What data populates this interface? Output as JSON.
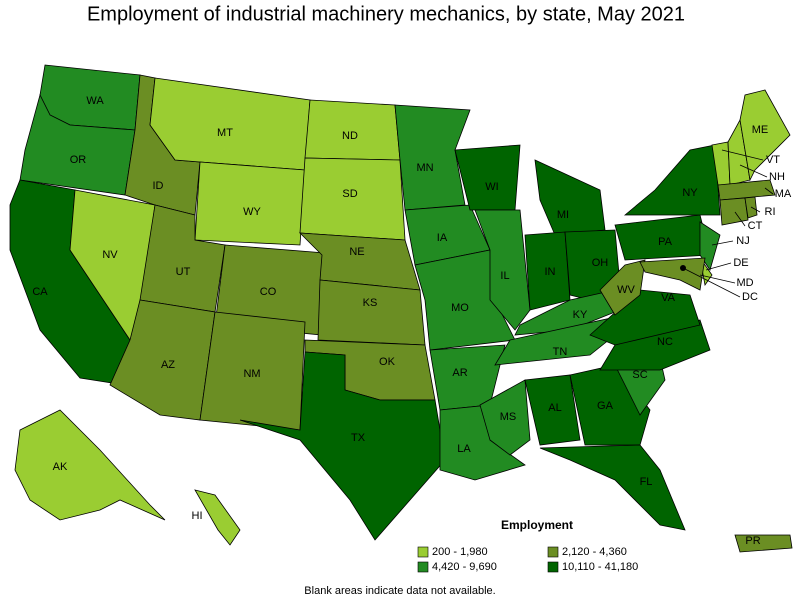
{
  "title": "Employment of industrial machinery mechanics, by state, May 2021",
  "legend": {
    "title": "Employment",
    "entries": [
      {
        "label": "200 - 1,980",
        "color": "#9acd32"
      },
      {
        "label": "2,120 - 4,360",
        "color": "#6b8e23"
      },
      {
        "label": "4,420 - 9,690",
        "color": "#228b22"
      },
      {
        "label": "10,110 - 41,180",
        "color": "#006400"
      }
    ]
  },
  "states": [
    {
      "label": "WA",
      "color": "#228b22"
    },
    {
      "label": "OR",
      "color": "#228b22"
    },
    {
      "label": "CA",
      "color": "#006400"
    },
    {
      "label": "NV",
      "color": "#9acd32"
    },
    {
      "label": "ID",
      "color": "#6b8e23"
    },
    {
      "label": "MT",
      "color": "#9acd32"
    },
    {
      "label": "WY",
      "color": "#9acd32"
    },
    {
      "label": "UT",
      "color": "#6b8e23"
    },
    {
      "label": "CO",
      "color": "#6b8e23"
    },
    {
      "label": "AZ",
      "color": "#6b8e23"
    },
    {
      "label": "NM",
      "color": "#6b8e23"
    },
    {
      "label": "ND",
      "color": "#9acd32"
    },
    {
      "label": "SD",
      "color": "#9acd32"
    },
    {
      "label": "NE",
      "color": "#6b8e23"
    },
    {
      "label": "KS",
      "color": "#6b8e23"
    },
    {
      "label": "OK",
      "color": "#6b8e23"
    },
    {
      "label": "TX",
      "color": "#006400"
    },
    {
      "label": "MN",
      "color": "#228b22"
    },
    {
      "label": "IA",
      "color": "#228b22"
    },
    {
      "label": "MO",
      "color": "#228b22"
    },
    {
      "label": "AR",
      "color": "#228b22"
    },
    {
      "label": "LA",
      "color": "#228b22"
    },
    {
      "label": "WI",
      "color": "#006400"
    },
    {
      "label": "IL",
      "color": "#228b22"
    },
    {
      "label": "MI",
      "color": "#006400"
    },
    {
      "label": "IN",
      "color": "#006400"
    },
    {
      "label": "OH",
      "color": "#006400"
    },
    {
      "label": "KY",
      "color": "#228b22"
    },
    {
      "label": "TN",
      "color": "#228b22"
    },
    {
      "label": "MS",
      "color": "#228b22"
    },
    {
      "label": "AL",
      "color": "#006400"
    },
    {
      "label": "GA",
      "color": "#006400"
    },
    {
      "label": "FL",
      "color": "#006400"
    },
    {
      "label": "SC",
      "color": "#228b22"
    },
    {
      "label": "NC",
      "color": "#006400"
    },
    {
      "label": "VA",
      "color": "#006400"
    },
    {
      "label": "WV",
      "color": "#6b8e23"
    },
    {
      "label": "PA",
      "color": "#006400"
    },
    {
      "label": "NY",
      "color": "#006400"
    },
    {
      "label": "NJ",
      "color": "#228b22"
    },
    {
      "label": "DE",
      "color": "#9acd32"
    },
    {
      "label": "MD",
      "color": "#6b8e23"
    },
    {
      "label": "DC",
      "color": "#6b8e23"
    },
    {
      "label": "VT",
      "color": "#9acd32"
    },
    {
      "label": "NH",
      "color": "#9acd32"
    },
    {
      "label": "ME",
      "color": "#9acd32"
    },
    {
      "label": "MA",
      "color": "#6b8e23"
    },
    {
      "label": "CT",
      "color": "#6b8e23"
    },
    {
      "label": "RI",
      "color": "#6b8e23"
    },
    {
      "label": "AK",
      "color": "#9acd32"
    },
    {
      "label": "HI",
      "color": "#9acd32"
    },
    {
      "label": "PR",
      "color": "#6b8e23"
    }
  ],
  "footnote": "Blank areas indicate data not available."
}
